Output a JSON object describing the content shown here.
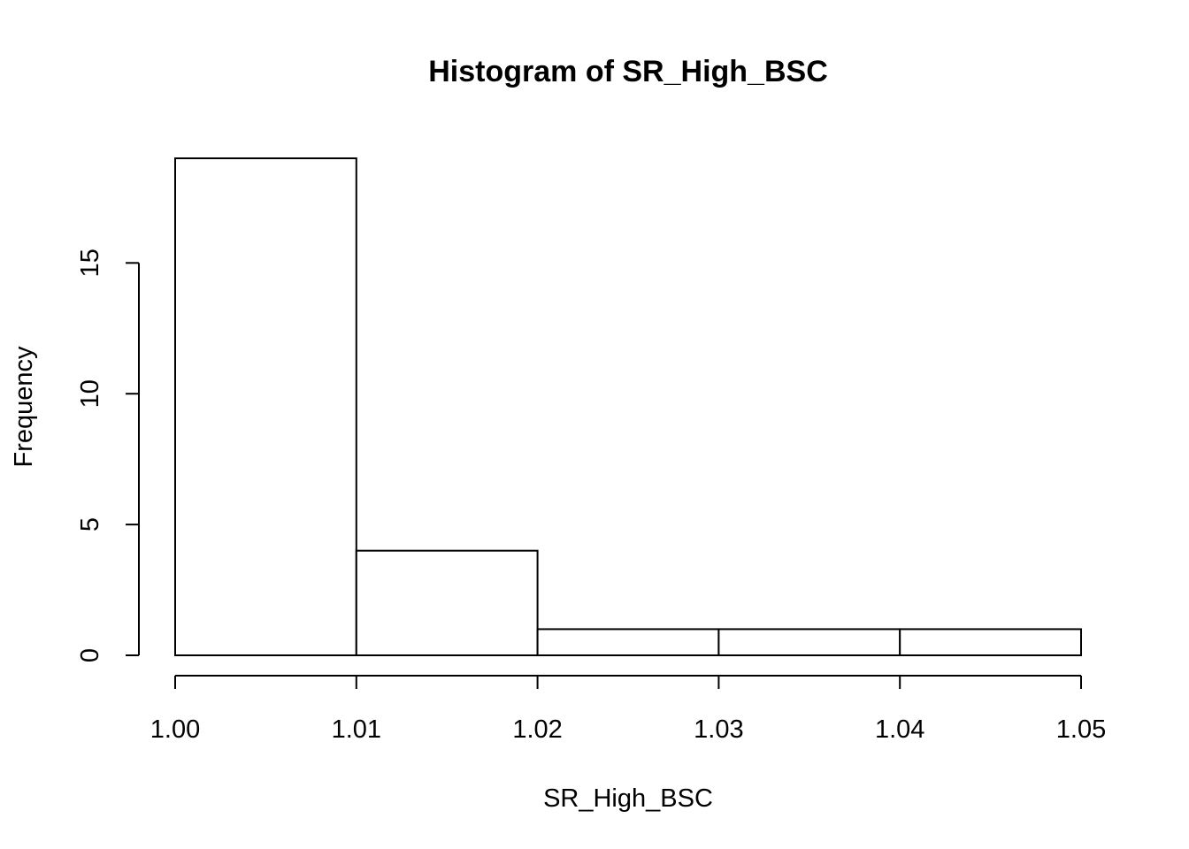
{
  "chart_data": {
    "type": "bar",
    "title": "Histogram of SR_High_BSC",
    "xlabel": "SR_High_BSC",
    "ylabel": "Frequency",
    "bins": [
      {
        "start": 1.0,
        "end": 1.01,
        "count": 19
      },
      {
        "start": 1.01,
        "end": 1.02,
        "count": 4
      },
      {
        "start": 1.02,
        "end": 1.03,
        "count": 1
      },
      {
        "start": 1.03,
        "end": 1.04,
        "count": 1
      },
      {
        "start": 1.04,
        "end": 1.05,
        "count": 1
      }
    ],
    "xlim": [
      1.0,
      1.05
    ],
    "ylim": [
      0,
      19
    ],
    "x_ticks": [
      {
        "value": 1.0,
        "label": "1.00"
      },
      {
        "value": 1.01,
        "label": "1.01"
      },
      {
        "value": 1.02,
        "label": "1.02"
      },
      {
        "value": 1.03,
        "label": "1.03"
      },
      {
        "value": 1.04,
        "label": "1.04"
      },
      {
        "value": 1.05,
        "label": "1.05"
      }
    ],
    "y_ticks": [
      {
        "value": 0,
        "label": "0"
      },
      {
        "value": 5,
        "label": "5"
      },
      {
        "value": 10,
        "label": "10"
      },
      {
        "value": 15,
        "label": "15"
      }
    ],
    "grid": false,
    "colors": {
      "bar_fill": "#ffffff",
      "bar_stroke": "#000000"
    }
  }
}
